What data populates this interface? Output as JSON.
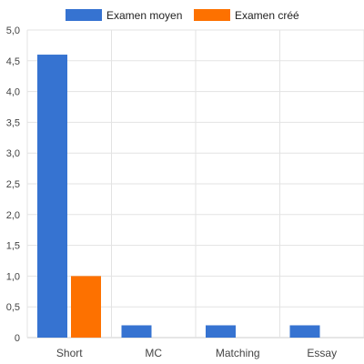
{
  "chart_data": {
    "type": "bar",
    "categories": [
      "Short",
      "MC",
      "Matching",
      "Essay"
    ],
    "series": [
      {
        "name": "Examen moyen",
        "color": "#3673d1",
        "values": [
          4.6,
          0.2,
          0.2,
          0.2
        ]
      },
      {
        "name": "Examen créé",
        "color": "#fd7100",
        "values": [
          1.0,
          0.0,
          0.0,
          0.0
        ]
      }
    ],
    "ylim": [
      0,
      5
    ],
    "yticks": [
      "0",
      "0,5",
      "1,0",
      "1,5",
      "2,0",
      "2,5",
      "3,0",
      "3,5",
      "4,0",
      "4,5",
      "5,0"
    ],
    "grid": true,
    "legend_position": "top"
  }
}
